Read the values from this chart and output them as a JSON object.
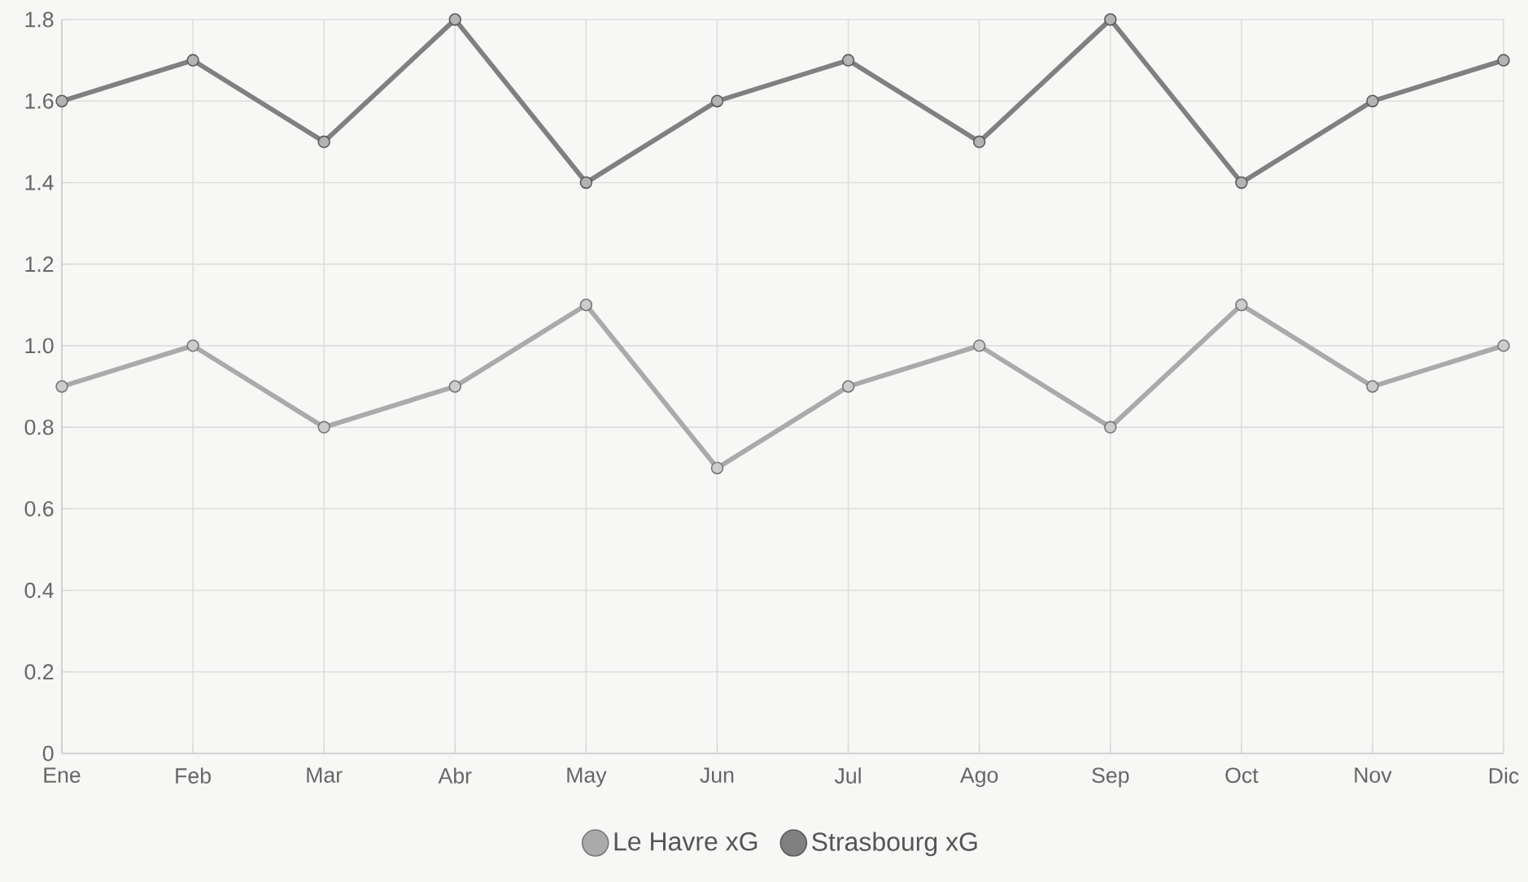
{
  "chart_data": {
    "type": "line",
    "categories": [
      "Ene",
      "Feb",
      "Mar",
      "Abr",
      "May",
      "Jun",
      "Jul",
      "Ago",
      "Sep",
      "Oct",
      "Nov",
      "Dic"
    ],
    "series": [
      {
        "name": "Le Havre xG",
        "color": "#aaaaaa",
        "values": [
          0.9,
          1.0,
          0.8,
          0.9,
          1.1,
          0.7,
          0.9,
          1.0,
          0.8,
          1.1,
          0.9,
          1.0
        ]
      },
      {
        "name": "Strasbourg xG",
        "color": "#808080",
        "values": [
          1.6,
          1.7,
          1.5,
          1.8,
          1.4,
          1.6,
          1.7,
          1.5,
          1.8,
          1.4,
          1.6,
          1.7
        ]
      }
    ],
    "ylim": [
      0,
      1.8
    ],
    "yticks": [
      0,
      0.2,
      0.4,
      0.6,
      0.8,
      {
        "value": 1,
        "label": "1.0"
      },
      1.2,
      1.4,
      1.6,
      1.8
    ],
    "grid": true,
    "legend": "bottom",
    "marker": "circle",
    "line_style": "solid"
  }
}
